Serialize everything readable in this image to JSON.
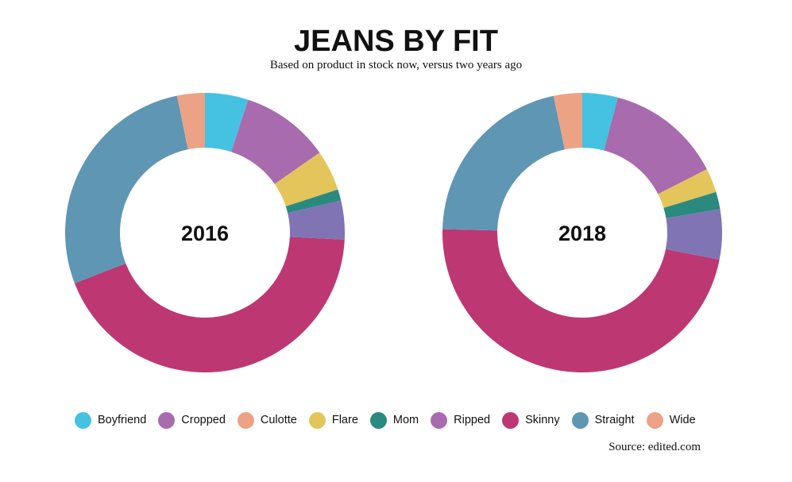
{
  "title": "JEANS BY FIT",
  "subtitle": "Based on product in stock now, versus two years ago",
  "source": "Source: edited.com",
  "colors": {
    "Boyfriend": "#45c1e2",
    "Cropped": "#a86bae",
    "Culotte": "#eba285",
    "Flare": "#e3c55c",
    "Mom": "#2b8a80",
    "Ripped": "#8074b4",
    "Skinny": "#bd3772",
    "Straight": "#5f96b4",
    "Wide": "#eba285"
  },
  "legend": {
    "items": [
      {
        "label": "Boyfriend",
        "color": "#45c1e2"
      },
      {
        "label": "Cropped",
        "color": "#a86bae"
      },
      {
        "label": "Culotte",
        "color": "#eba285"
      },
      {
        "label": "Flare",
        "color": "#e3c55c"
      },
      {
        "label": "Mom",
        "color": "#2b8a80"
      },
      {
        "label": "Ripped",
        "color": "#a86bae"
      },
      {
        "label": "Skinny",
        "color": "#bd3772"
      },
      {
        "label": "Straight",
        "color": "#5f96b4"
      },
      {
        "label": "Wide",
        "color": "#eba285"
      }
    ]
  },
  "chart_data": [
    {
      "type": "pie",
      "center_label": "2016",
      "slices": [
        {
          "label": "Boyfriend",
          "value": 5.0
        },
        {
          "label": "Cropped",
          "value": 10.3
        },
        {
          "label": "Flare",
          "value": 4.7
        },
        {
          "label": "Mom",
          "value": 1.3
        },
        {
          "label": "Ripped",
          "value": 4.5
        },
        {
          "label": "Skinny",
          "value": 43.3
        },
        {
          "label": "Straight",
          "value": 27.7
        },
        {
          "label": "Wide",
          "value": 3.2
        }
      ]
    },
    {
      "type": "pie",
      "center_label": "2018",
      "slices": [
        {
          "label": "Boyfriend",
          "value": 4.1
        },
        {
          "label": "Cropped",
          "value": 13.4
        },
        {
          "label": "Flare",
          "value": 2.8
        },
        {
          "label": "Mom",
          "value": 2.0
        },
        {
          "label": "Ripped",
          "value": 5.8
        },
        {
          "label": "Skinny",
          "value": 47.3
        },
        {
          "label": "Straight",
          "value": 21.3
        },
        {
          "label": "Wide",
          "value": 3.3
        }
      ]
    }
  ]
}
